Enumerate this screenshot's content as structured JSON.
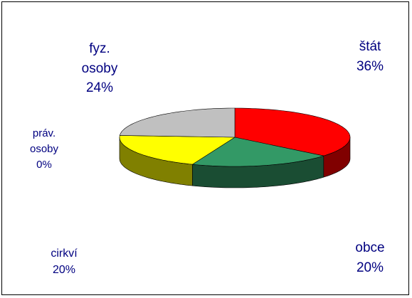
{
  "chart_data": {
    "type": "pie3d",
    "categories": [
      "štát",
      "obce",
      "cirkví",
      "práv. osoby",
      "fyz. osoby"
    ],
    "values": [
      36,
      20,
      20,
      0,
      24
    ],
    "value_labels": [
      "36%",
      "20%",
      "20%",
      "0%",
      "24%"
    ],
    "colors": [
      "#ff0000",
      "#339966",
      "#ffff00",
      "#3366ff",
      "#c0c0c0"
    ]
  }
}
